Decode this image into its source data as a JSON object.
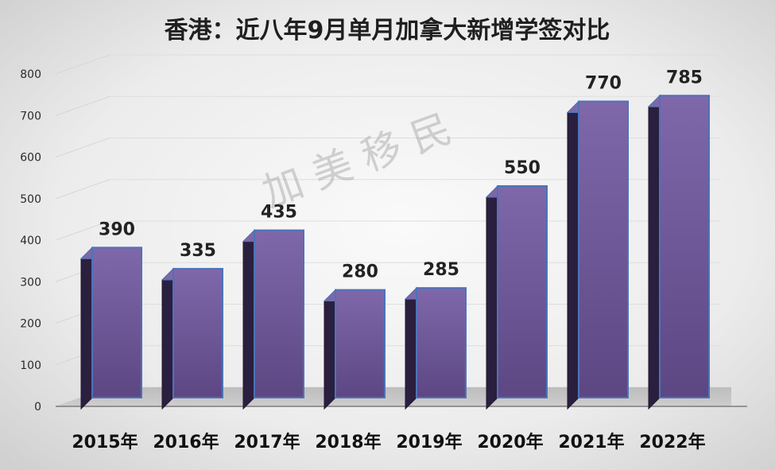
{
  "watermark": "加 美 移 民",
  "chart_data": {
    "type": "bar",
    "title": "香港：近八年9月单月加拿大新增学签对比",
    "categories": [
      "2015年",
      "2016年",
      "2017年",
      "2018年",
      "2019年",
      "2020年",
      "2021年",
      "2022年"
    ],
    "values": [
      390,
      335,
      435,
      280,
      285,
      550,
      770,
      785
    ],
    "ylim": [
      0,
      800
    ],
    "yticks": [
      0,
      100,
      200,
      300,
      400,
      500,
      600,
      700,
      800
    ],
    "grid": true,
    "colors": {
      "bar_front": "#5f4a87",
      "bar_side": "#2a1f3f",
      "bar_top": "#7f67a7",
      "bar_edge": "#4c73b9"
    }
  }
}
